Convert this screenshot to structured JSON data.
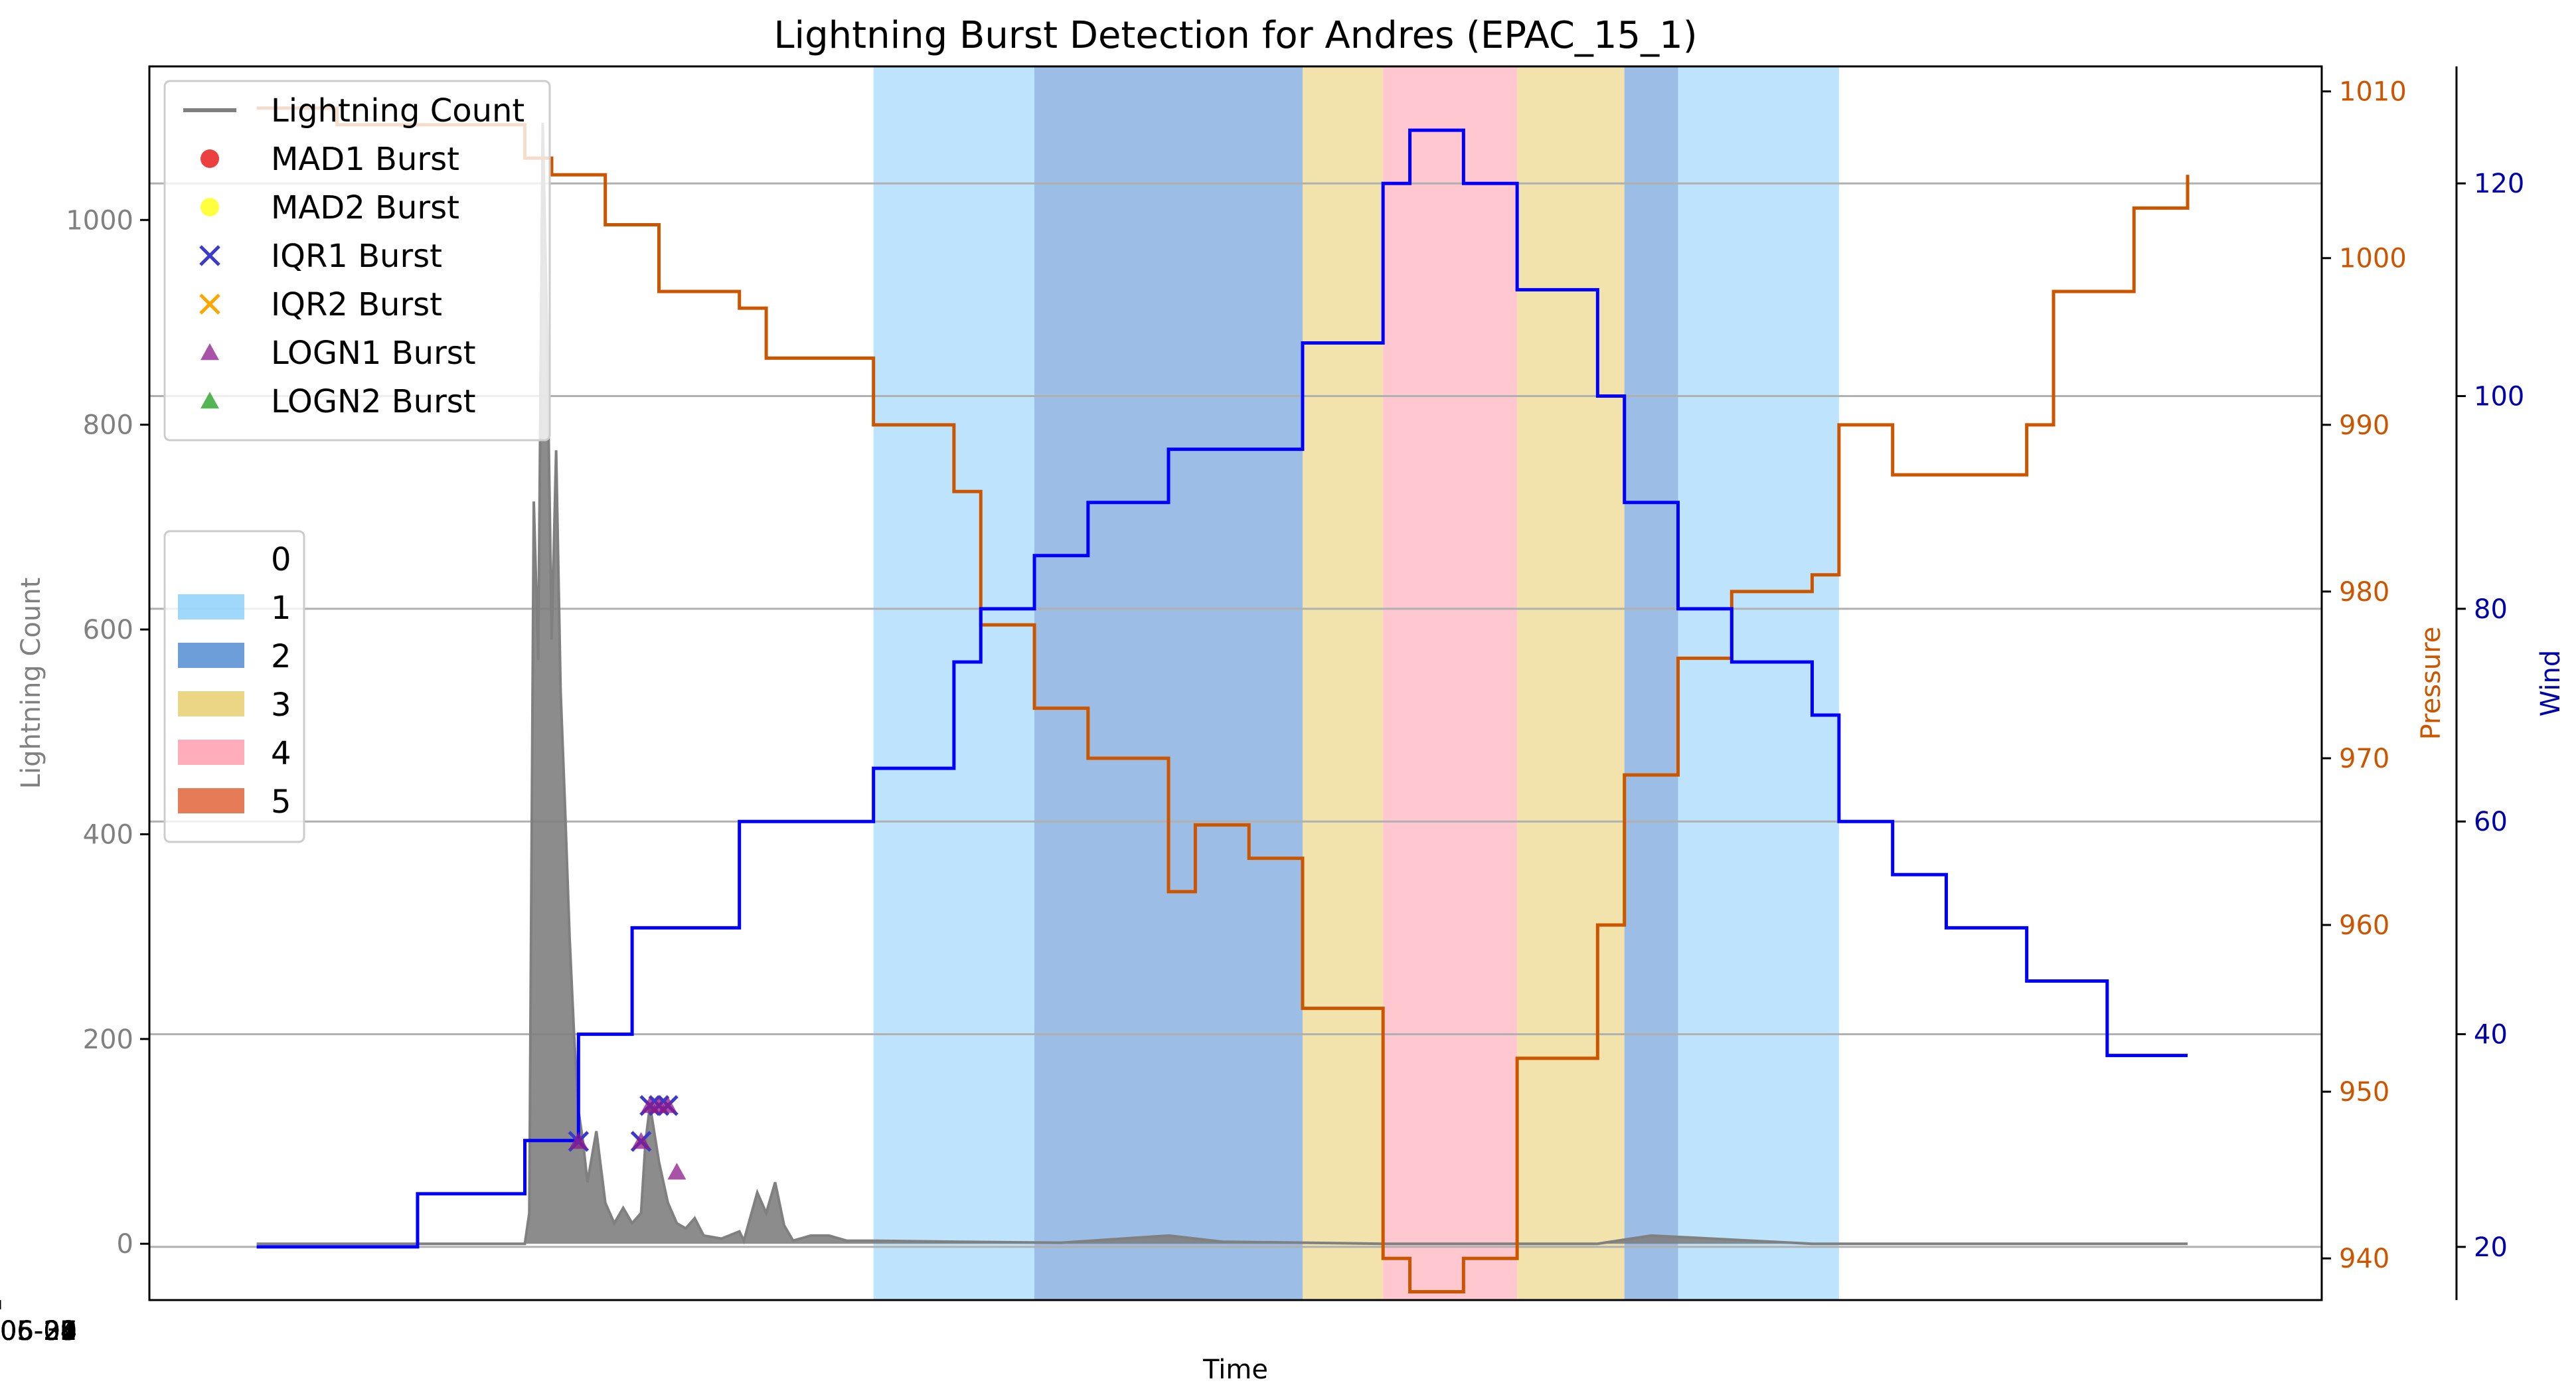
{
  "chart_data": {
    "type": "line",
    "title": "Lightning Burst Detection for Andres (EPAC_15_1)",
    "xlabel": "Time",
    "ylabel_left": "Lightning Count",
    "ylabel_right1": "Pressure",
    "ylabel_right2": "Wind",
    "x_ticks": [
      "2015-05-27",
      "2015-05-28",
      "2015-05-29",
      "2015-05-30",
      "2015-05-31",
      "2015-06-01",
      "2015-06-02",
      "2015-06-03",
      "2015-06-04",
      "2015-06-05"
    ],
    "xlim": [
      "2015-05-26 06:00",
      "2015-06-05 09:00"
    ],
    "y_left": {
      "lim": [
        -55,
        1150
      ],
      "ticks": [
        0,
        200,
        400,
        600,
        800,
        1000
      ],
      "color": "#808080"
    },
    "y_pressure": {
      "lim": [
        937.5,
        1011.5
      ],
      "ticks": [
        940,
        950,
        960,
        970,
        980,
        990,
        1000,
        1010
      ],
      "color": "#cc5500"
    },
    "y_wind": {
      "lim": [
        15,
        131
      ],
      "ticks": [
        20,
        40,
        60,
        80,
        100,
        120
      ],
      "color": "#0000aa"
    },
    "grid": "horizontal lines at wind ticks",
    "category_colors": {
      "1": "#87cefa",
      "2": "#4a86cf",
      "3": "#e6cc66",
      "4": "#ff99aa",
      "5": "#e05a2e"
    },
    "category_bands": [
      {
        "cat": 1,
        "start": "2015-05-29 15:00",
        "end": "2015-05-30 09:00"
      },
      {
        "cat": 2,
        "start": "2015-05-30 09:00",
        "end": "2015-05-31 15:00"
      },
      {
        "cat": 3,
        "start": "2015-05-31 15:00",
        "end": "2015-06-01 00:00"
      },
      {
        "cat": 4,
        "start": "2015-06-01 00:00",
        "end": "2015-06-01 15:00"
      },
      {
        "cat": 3,
        "start": "2015-06-01 15:00",
        "end": "2015-06-02 03:00"
      },
      {
        "cat": 2,
        "start": "2015-06-02 03:00",
        "end": "2015-06-02 09:00"
      },
      {
        "cat": 1,
        "start": "2015-06-02 09:00",
        "end": "2015-06-03 03:00"
      }
    ],
    "series": [
      {
        "name": "Lightning Count",
        "color": "#808080",
        "points": [
          [
            "2015-05-26 18:00",
            0
          ],
          [
            "2015-05-28 00:00",
            0
          ],
          [
            "2015-05-28 00:30",
            30
          ],
          [
            "2015-05-28 01:00",
            725
          ],
          [
            "2015-05-28 01:30",
            570
          ],
          [
            "2015-05-28 02:00",
            1095
          ],
          [
            "2015-05-28 02:30",
            885
          ],
          [
            "2015-05-28 03:00",
            590
          ],
          [
            "2015-05-28 03:30",
            775
          ],
          [
            "2015-05-28 04:00",
            540
          ],
          [
            "2015-05-28 04:30",
            425
          ],
          [
            "2015-05-28 05:00",
            300
          ],
          [
            "2015-05-28 05:30",
            205
          ],
          [
            "2015-05-28 06:00",
            130
          ],
          [
            "2015-05-28 06:30",
            100
          ],
          [
            "2015-05-28 07:00",
            60
          ],
          [
            "2015-05-28 08:00",
            110
          ],
          [
            "2015-05-28 09:00",
            40
          ],
          [
            "2015-05-28 10:00",
            20
          ],
          [
            "2015-05-28 11:00",
            35
          ],
          [
            "2015-05-28 12:00",
            20
          ],
          [
            "2015-05-28 13:00",
            30
          ],
          [
            "2015-05-28 13:30",
            100
          ],
          [
            "2015-05-28 14:00",
            135
          ],
          [
            "2015-05-28 15:00",
            80
          ],
          [
            "2015-05-28 16:00",
            40
          ],
          [
            "2015-05-28 17:00",
            20
          ],
          [
            "2015-05-28 18:00",
            15
          ],
          [
            "2015-05-28 19:00",
            25
          ],
          [
            "2015-05-28 20:00",
            8
          ],
          [
            "2015-05-28 22:00",
            5
          ],
          [
            "2015-05-29 00:00",
            12
          ],
          [
            "2015-05-29 00:30",
            3
          ],
          [
            "2015-05-29 02:00",
            50
          ],
          [
            "2015-05-29 03:00",
            30
          ],
          [
            "2015-05-29 04:00",
            60
          ],
          [
            "2015-05-29 05:00",
            18
          ],
          [
            "2015-05-29 06:00",
            3
          ],
          [
            "2015-05-29 08:00",
            8
          ],
          [
            "2015-05-29 10:00",
            8
          ],
          [
            "2015-05-29 12:00",
            3
          ],
          [
            "2015-05-29 15:00",
            3
          ],
          [
            "2015-05-30 00:00",
            2
          ],
          [
            "2015-05-30 12:00",
            1
          ],
          [
            "2015-05-31 00:00",
            8
          ],
          [
            "2015-05-31 06:00",
            2
          ],
          [
            "2015-06-01 00:00",
            0
          ],
          [
            "2015-06-02 00:00",
            0
          ],
          [
            "2015-06-02 06:00",
            8
          ],
          [
            "2015-06-03 00:00",
            0
          ],
          [
            "2015-06-04 18:00",
            0
          ]
        ]
      },
      {
        "name": "Pressure",
        "color": "#cc5500",
        "points": [
          [
            "2015-05-26 18:00",
            1009
          ],
          [
            "2015-05-27 03:00",
            1008
          ],
          [
            "2015-05-27 18:00",
            1008
          ],
          [
            "2015-05-28 00:00",
            1006
          ],
          [
            "2015-05-28 03:00",
            1005
          ],
          [
            "2015-05-28 09:00",
            1002
          ],
          [
            "2015-05-28 15:00",
            998
          ],
          [
            "2015-05-29 00:00",
            997
          ],
          [
            "2015-05-29 03:00",
            994
          ],
          [
            "2015-05-29 15:00",
            990
          ],
          [
            "2015-05-30 00:00",
            986
          ],
          [
            "2015-05-30 03:00",
            978
          ],
          [
            "2015-05-30 09:00",
            973
          ],
          [
            "2015-05-30 15:00",
            970
          ],
          [
            "2015-05-30 21:00",
            970
          ],
          [
            "2015-05-31 00:00",
            962
          ],
          [
            "2015-05-31 03:00",
            966
          ],
          [
            "2015-05-31 09:00",
            964
          ],
          [
            "2015-05-31 15:00",
            955
          ],
          [
            "2015-06-01 00:00",
            940
          ],
          [
            "2015-06-01 03:00",
            938
          ],
          [
            "2015-06-01 09:00",
            940
          ],
          [
            "2015-06-01 15:00",
            952
          ],
          [
            "2015-06-02 00:00",
            960
          ],
          [
            "2015-06-02 03:00",
            969
          ],
          [
            "2015-06-02 09:00",
            976
          ],
          [
            "2015-06-02 15:00",
            980
          ],
          [
            "2015-06-03 00:00",
            981
          ],
          [
            "2015-06-03 03:00",
            990
          ],
          [
            "2015-06-03 09:00",
            987
          ],
          [
            "2015-06-04 00:00",
            990
          ],
          [
            "2015-06-04 03:00",
            998
          ],
          [
            "2015-06-04 12:00",
            1003
          ],
          [
            "2015-06-04 18:00",
            1005
          ]
        ]
      },
      {
        "name": "Wind",
        "color": "#0000ff",
        "points": [
          [
            "2015-05-26 18:00",
            20
          ],
          [
            "2015-05-27 12:00",
            25
          ],
          [
            "2015-05-28 00:00",
            30
          ],
          [
            "2015-05-28 06:00",
            40
          ],
          [
            "2015-05-28 12:00",
            50
          ],
          [
            "2015-05-29 00:00",
            60
          ],
          [
            "2015-05-29 15:00",
            65
          ],
          [
            "2015-05-30 00:00",
            75
          ],
          [
            "2015-05-30 03:00",
            80
          ],
          [
            "2015-05-30 09:00",
            85
          ],
          [
            "2015-05-30 15:00",
            90
          ],
          [
            "2015-05-30 21:00",
            90
          ],
          [
            "2015-05-31 00:00",
            95
          ],
          [
            "2015-05-31 15:00",
            105
          ],
          [
            "2015-06-01 00:00",
            120
          ],
          [
            "2015-06-01 03:00",
            125
          ],
          [
            "2015-06-01 09:00",
            120
          ],
          [
            "2015-06-01 15:00",
            110
          ],
          [
            "2015-06-02 00:00",
            100
          ],
          [
            "2015-06-02 03:00",
            90
          ],
          [
            "2015-06-02 09:00",
            80
          ],
          [
            "2015-06-02 15:00",
            75
          ],
          [
            "2015-06-03 00:00",
            70
          ],
          [
            "2015-06-03 03:00",
            60
          ],
          [
            "2015-06-03 09:00",
            55
          ],
          [
            "2015-06-03 15:00",
            50
          ],
          [
            "2015-06-04 00:00",
            45
          ],
          [
            "2015-06-04 09:00",
            38
          ],
          [
            "2015-06-04 18:00",
            38
          ]
        ]
      }
    ],
    "bursts": [
      {
        "name": "IQR1 Burst",
        "marker": "x",
        "color": "#3a3acc",
        "points": [
          [
            "2015-05-28 06:00",
            100
          ],
          [
            "2015-05-28 13:00",
            100
          ],
          [
            "2015-05-28 14:00",
            135
          ],
          [
            "2015-05-28 15:00",
            135
          ],
          [
            "2015-05-28 16:00",
            135
          ]
        ]
      },
      {
        "name": "LOGN1 Burst",
        "marker": "triangle",
        "color": "#8b1a8b",
        "points": [
          [
            "2015-05-28 06:00",
            100
          ],
          [
            "2015-05-28 13:00",
            100
          ],
          [
            "2015-05-28 14:00",
            135
          ],
          [
            "2015-05-28 15:00",
            135
          ],
          [
            "2015-05-28 16:00",
            135
          ],
          [
            "2015-05-28 17:00",
            70
          ]
        ]
      }
    ],
    "legend": {
      "placement": "upper-left",
      "entries": [
        {
          "label": "Lightning Count",
          "marker": "line",
          "color": "#808080"
        },
        {
          "label": "MAD1 Burst",
          "marker": "circle",
          "color": "#e60000"
        },
        {
          "label": "MAD2 Burst",
          "marker": "circle",
          "color": "#ffff00"
        },
        {
          "label": "IQR1 Burst",
          "marker": "x",
          "color": "#3a3acc"
        },
        {
          "label": "IQR2 Burst",
          "marker": "x",
          "color": "#ffa500"
        },
        {
          "label": "LOGN1 Burst",
          "marker": "triangle",
          "color": "#8b1a8b"
        },
        {
          "label": "LOGN2 Burst",
          "marker": "triangle",
          "color": "#1a9e1a"
        }
      ]
    },
    "category_legend": {
      "placement": "center-left",
      "entries": [
        {
          "label": "0",
          "color": "none"
        },
        {
          "label": "1",
          "color": "#87cefa"
        },
        {
          "label": "2",
          "color": "#4a86cf"
        },
        {
          "label": "3",
          "color": "#e6cc66"
        },
        {
          "label": "4",
          "color": "#ff99aa"
        },
        {
          "label": "5",
          "color": "#e05a2e"
        }
      ]
    }
  }
}
